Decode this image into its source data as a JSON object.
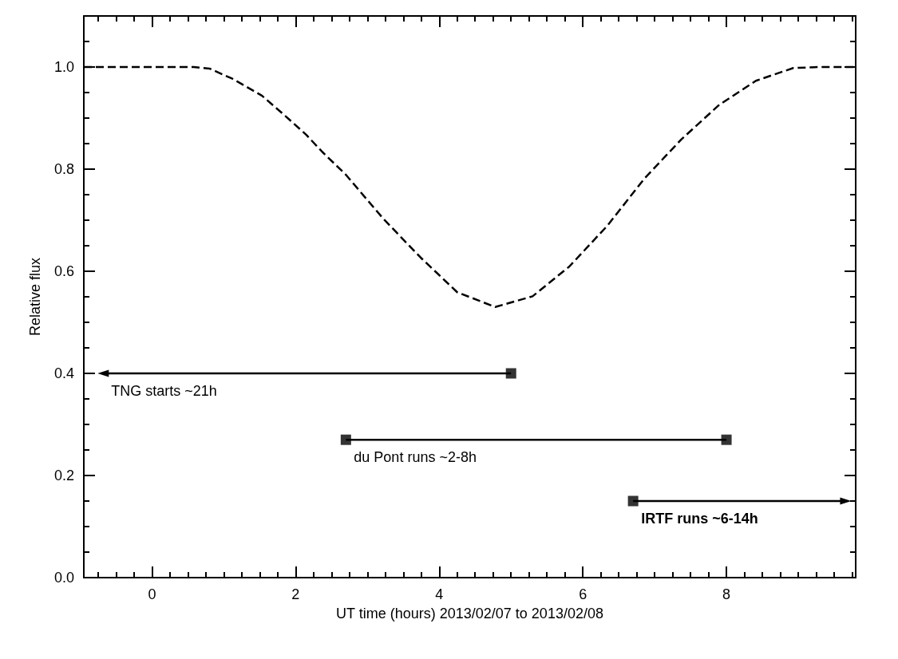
{
  "chart_data": {
    "type": "line",
    "xlabel": "UT time (hours) 2013/02/07 to 2013/02/08",
    "ylabel": "Relative flux",
    "xlim": [
      -0.95,
      9.8
    ],
    "ylim": [
      0,
      1.1
    ],
    "xticks": [
      {
        "value": -0.75,
        "label": null
      },
      {
        "value": -0.5,
        "label": null
      },
      {
        "value": -0.25,
        "label": null
      },
      0,
      {
        "value": 0.25,
        "label": null
      },
      {
        "value": 0.5,
        "label": null
      },
      {
        "value": 0.75,
        "label": null
      },
      {
        "value": 1,
        "label": null
      },
      {
        "value": 1.25,
        "label": null
      },
      {
        "value": 1.5,
        "label": null
      },
      {
        "value": 1.75,
        "label": null
      },
      2,
      {
        "value": 2.25,
        "label": null
      },
      {
        "value": 2.5,
        "label": null
      },
      {
        "value": 2.75,
        "label": null
      },
      {
        "value": 3,
        "label": null
      },
      {
        "value": 3.25,
        "label": null
      },
      {
        "value": 3.5,
        "label": null
      },
      {
        "value": 3.75,
        "label": null
      },
      4,
      {
        "value": 4.25,
        "label": null
      },
      {
        "value": 4.5,
        "label": null
      },
      {
        "value": 4.75,
        "label": null
      },
      {
        "value": 5,
        "label": null
      },
      {
        "value": 5.25,
        "label": null
      },
      {
        "value": 5.5,
        "label": null
      },
      {
        "value": 5.75,
        "label": null
      },
      6,
      {
        "value": 6.25,
        "label": null
      },
      {
        "value": 6.5,
        "label": null
      },
      {
        "value": 6.75,
        "label": null
      },
      {
        "value": 7,
        "label": null
      },
      {
        "value": 7.25,
        "label": null
      },
      {
        "value": 7.5,
        "label": null
      },
      {
        "value": 7.75,
        "label": null
      },
      8,
      {
        "value": 8.25,
        "label": null
      },
      {
        "value": 8.5,
        "label": null
      },
      {
        "value": 8.75,
        "label": null
      },
      {
        "value": 9,
        "label": null
      },
      {
        "value": 9.25,
        "label": null
      },
      {
        "value": 9.5,
        "label": null
      },
      {
        "value": 9.75,
        "label": null
      }
    ],
    "yticks": [
      {
        "value": 0,
        "label": "0.0"
      },
      {
        "value": 0.05,
        "label": null
      },
      {
        "value": 0.1,
        "label": null
      },
      {
        "value": 0.15,
        "label": null
      },
      0.2,
      {
        "value": 0.25,
        "label": null
      },
      {
        "value": 0.3,
        "label": null
      },
      {
        "value": 0.35,
        "label": null
      },
      0.4,
      {
        "value": 0.45,
        "label": null
      },
      {
        "value": 0.5,
        "label": null
      },
      {
        "value": 0.55,
        "label": null
      },
      0.6,
      {
        "value": 0.65,
        "label": null
      },
      {
        "value": 0.7,
        "label": null
      },
      {
        "value": 0.75,
        "label": null
      },
      0.8,
      {
        "value": 0.85,
        "label": null
      },
      {
        "value": 0.9,
        "label": null
      },
      {
        "value": 0.95,
        "label": null
      },
      {
        "value": 1,
        "label": "1.0"
      },
      {
        "value": 1.05,
        "label": null
      }
    ],
    "grid": false,
    "series": [
      {
        "color": "#000000",
        "line_style": "dashed",
        "marker": "none",
        "x": [
          -0.95,
          0.2,
          0.58,
          0.8,
          1.12,
          1.53,
          1.85,
          2.15,
          2.37,
          2.7,
          3.22,
          3.74,
          4.25,
          4.78,
          5.3,
          5.81,
          6.34,
          6.86,
          7.37,
          7.9,
          8.41,
          8.93,
          9.3,
          9.8
        ],
        "values": [
          1.0,
          1.0,
          1.0,
          0.997,
          0.977,
          0.944,
          0.905,
          0.867,
          0.834,
          0.789,
          0.703,
          0.627,
          0.559,
          0.53,
          0.551,
          0.609,
          0.689,
          0.782,
          0.858,
          0.926,
          0.973,
          0.998,
          1.0,
          1.0
        ]
      },
      {
        "color": "#000000",
        "line_style": "solid",
        "x": [
          5.0,
          -0.68
        ],
        "values": [
          0.4,
          0.4
        ]
      },
      {
        "color": "#000000",
        "line_style": "solid",
        "marker": "none",
        "x": [
          2.7,
          8.0
        ],
        "values": [
          0.27,
          0.27
        ]
      },
      {
        "color": "#000000",
        "line_style": "solid",
        "x": [
          6.7,
          9.66
        ],
        "values": [
          0.15,
          0.15
        ]
      },
      {
        "type": "scatter",
        "color": "#000000",
        "marker": "square",
        "x": [
          5.0,
          2.7,
          8.0,
          6.7
        ],
        "values": [
          0.4,
          0.27,
          0.27,
          0.15
        ]
      }
    ],
    "annotations": [
      "TNG starts ~21h",
      "du Pont runs ~2-8h",
      "IRTF runs ~6-14h"
    ]
  }
}
